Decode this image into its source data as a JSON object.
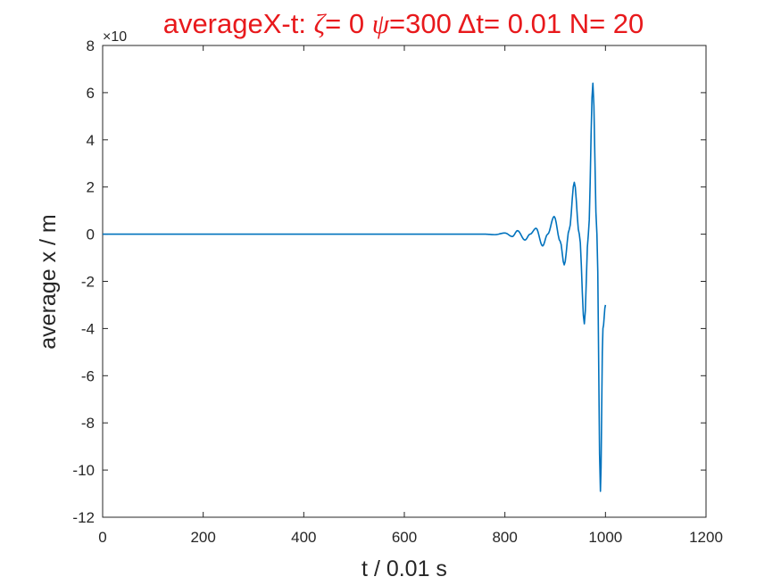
{
  "chart_data": {
    "type": "line",
    "title": {
      "prefix": "averageX-t:  ",
      "zeta_symbol": "ζ",
      "zeta_text": "= 0 ",
      "psi_symbol": "ψ",
      "rest": "=300 Δt= 0.01 N= 20"
    },
    "xlabel": "t / 0.01 s",
    "ylabel": "average x / m",
    "y_exponent": "×10",
    "xlim": [
      0,
      1200
    ],
    "ylim": [
      -12,
      8
    ],
    "x_ticks": [
      0,
      200,
      400,
      600,
      800,
      1000,
      1200
    ],
    "y_ticks": [
      -12,
      -10,
      -8,
      -6,
      -4,
      -2,
      0,
      2,
      4,
      6,
      8
    ],
    "grid": false,
    "line_color": "#0072bd",
    "title_color": "#e8191c",
    "series": [
      {
        "values_description": "",
        "x": [
          0,
          690,
          760,
          780,
          800,
          815,
          825,
          840,
          850,
          862,
          875,
          885,
          898,
          910,
          918,
          928,
          938,
          948,
          958,
          966,
          975,
          983,
          990,
          995,
          1000
        ],
        "y": [
          0,
          0,
          0,
          -0.02,
          0.05,
          -0.1,
          0.15,
          -0.25,
          0,
          0.25,
          -0.5,
          0,
          0.75,
          -0.3,
          -1.3,
          0.2,
          2.2,
          0,
          -3.8,
          0,
          6.4,
          0,
          -10.9,
          -4,
          -3.0
        ]
      }
    ]
  }
}
